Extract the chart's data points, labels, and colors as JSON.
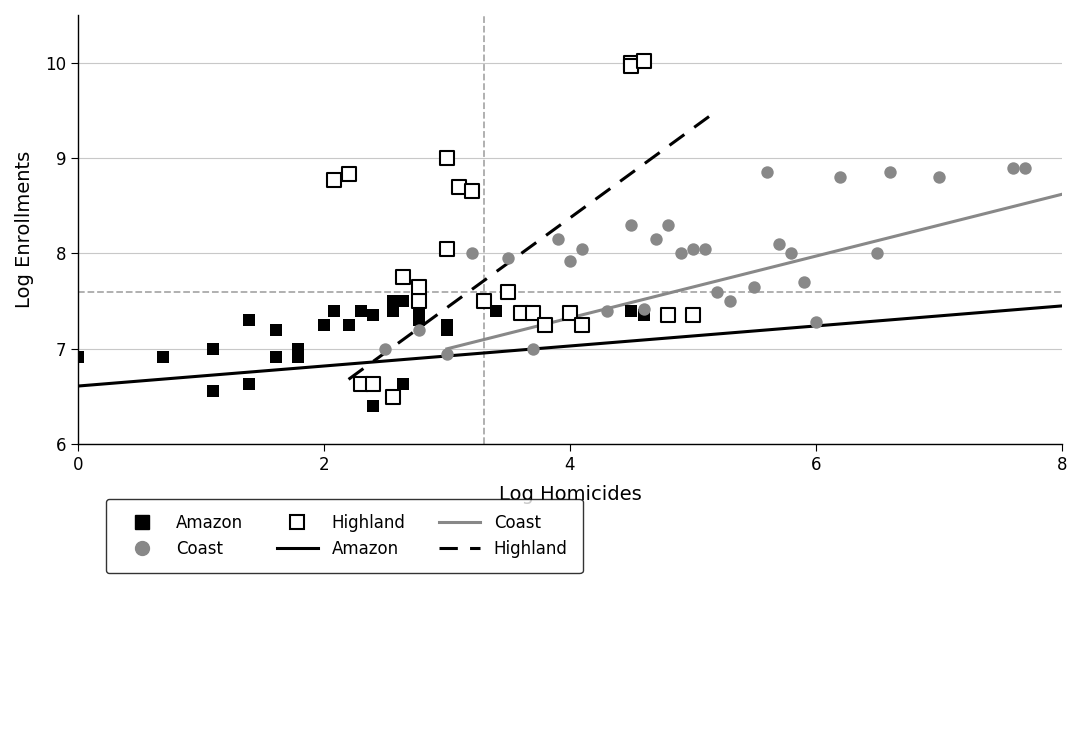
{
  "amazon_x": [
    0.0,
    0.69,
    1.1,
    1.1,
    1.39,
    1.39,
    1.61,
    1.61,
    1.79,
    1.79,
    2.0,
    2.08,
    2.2,
    2.3,
    2.4,
    2.4,
    2.56,
    2.56,
    2.64,
    2.64,
    2.77,
    2.77,
    3.0,
    3.0,
    3.4,
    4.5,
    4.6
  ],
  "amazon_y": [
    6.91,
    6.91,
    6.56,
    7.0,
    7.3,
    6.63,
    6.91,
    7.2,
    7.0,
    6.91,
    7.25,
    7.4,
    7.25,
    7.4,
    7.35,
    6.4,
    7.4,
    7.5,
    7.5,
    6.63,
    7.3,
    7.4,
    7.2,
    7.25,
    7.4,
    7.4,
    7.35
  ],
  "coast_x": [
    2.5,
    2.77,
    3.0,
    3.2,
    3.5,
    3.7,
    3.9,
    4.0,
    4.1,
    4.3,
    4.5,
    4.6,
    4.7,
    4.8,
    4.9,
    5.0,
    5.1,
    5.2,
    5.3,
    5.5,
    5.6,
    5.7,
    5.8,
    5.9,
    6.0,
    6.2,
    6.5,
    6.6,
    7.0,
    7.6,
    7.7
  ],
  "coast_y": [
    7.0,
    7.2,
    6.95,
    8.0,
    7.95,
    7.0,
    8.15,
    7.92,
    8.05,
    7.4,
    8.3,
    7.42,
    8.15,
    8.3,
    8.0,
    8.05,
    8.05,
    7.6,
    7.5,
    7.65,
    8.85,
    8.1,
    8.0,
    7.7,
    7.28,
    8.8,
    8.0,
    8.85,
    8.8,
    8.9,
    8.9
  ],
  "highland_x": [
    2.08,
    2.2,
    2.3,
    2.4,
    2.56,
    2.64,
    2.77,
    2.77,
    3.0,
    3.0,
    3.1,
    3.2,
    3.3,
    3.5,
    3.6,
    3.7,
    3.8,
    4.0,
    4.1,
    4.5,
    4.5,
    4.6,
    4.8,
    5.0
  ],
  "highland_y": [
    8.77,
    8.83,
    6.63,
    6.63,
    6.5,
    7.75,
    7.5,
    7.65,
    8.05,
    9.0,
    8.7,
    8.65,
    7.5,
    7.6,
    7.38,
    7.38,
    7.25,
    7.38,
    7.25,
    10.0,
    9.97,
    10.02,
    7.35,
    7.35
  ],
  "amazon_line_x": [
    0.0,
    8.0
  ],
  "amazon_line_y": [
    6.61,
    7.45
  ],
  "coast_line_x": [
    3.0,
    8.0
  ],
  "coast_line_y": [
    7.0,
    8.62
  ],
  "highland_line_x": [
    2.2,
    5.2
  ],
  "highland_line_y": [
    6.68,
    9.5
  ],
  "vline_x": 3.3,
  "hline_y": 7.6,
  "xlim": [
    0,
    8
  ],
  "ylim": [
    6.0,
    10.5
  ],
  "xticks": [
    0,
    2,
    4,
    6,
    8
  ],
  "yticks": [
    6,
    7,
    8,
    9,
    10
  ],
  "xlabel": "Log Homicides",
  "ylabel": "Log Enrollments",
  "amazon_color": "#000000",
  "coast_color": "#888888",
  "highland_edge_color": "#000000",
  "bg_color": "#ffffff",
  "grid_color": "#c8c8c8",
  "refline_color": "#aaaaaa",
  "legend_items_row1": [
    "Amazon",
    "Coast",
    "Highland"
  ],
  "legend_items_row2": [
    "Amazon",
    "Coast",
    "Highland"
  ]
}
